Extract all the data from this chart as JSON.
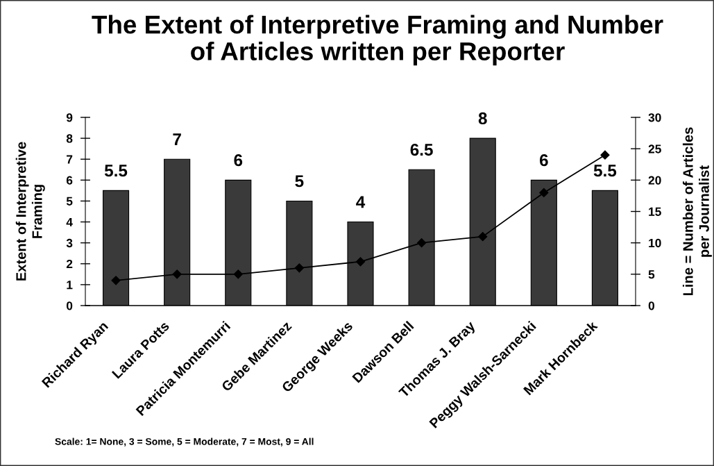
{
  "chart_data": {
    "type": "bar",
    "title": "The Extent of Interpretive Framing and Number\nof Articles written per Reporter",
    "ylabel": "Extent of Interpretive\nFraming",
    "y2label": "Line = Number of Articles\nper Journalist",
    "categories": [
      "Richard Ryan",
      "Laura Potts",
      "Patricia Montemurri",
      "Gebe Martinez",
      "George Weeks",
      "Dawson Bell",
      "Thomas J. Bray",
      "Peggy Walsh-Sarnecki",
      "Mark Hornbeck"
    ],
    "series": [
      {
        "color": "#3a3a3a",
        "values": [
          5.5,
          7,
          6,
          5,
          4,
          6.5,
          8,
          6,
          5.5
        ],
        "value_labels": [
          "5.5",
          "7",
          "6",
          "5",
          "4",
          "6.5",
          "8",
          "6",
          "5.5"
        ]
      },
      {
        "type": "line",
        "axis": "y2",
        "color": "#000000",
        "marker": "diamond",
        "line_style": "solid",
        "values": [
          4,
          5,
          5,
          6,
          7,
          10,
          11,
          18,
          24
        ]
      }
    ],
    "ylim": [
      0,
      9
    ],
    "yticks": [
      0,
      1,
      2,
      3,
      4,
      5,
      6,
      7,
      8,
      9
    ],
    "y2lim": [
      0,
      30
    ],
    "y2ticks": [
      0,
      5,
      10,
      15,
      20,
      25,
      30
    ],
    "grid": false,
    "annotations": [
      "Scale: 1= None, 3 = Some, 5 = Moderate, 7 = Most, 9 = All"
    ]
  }
}
